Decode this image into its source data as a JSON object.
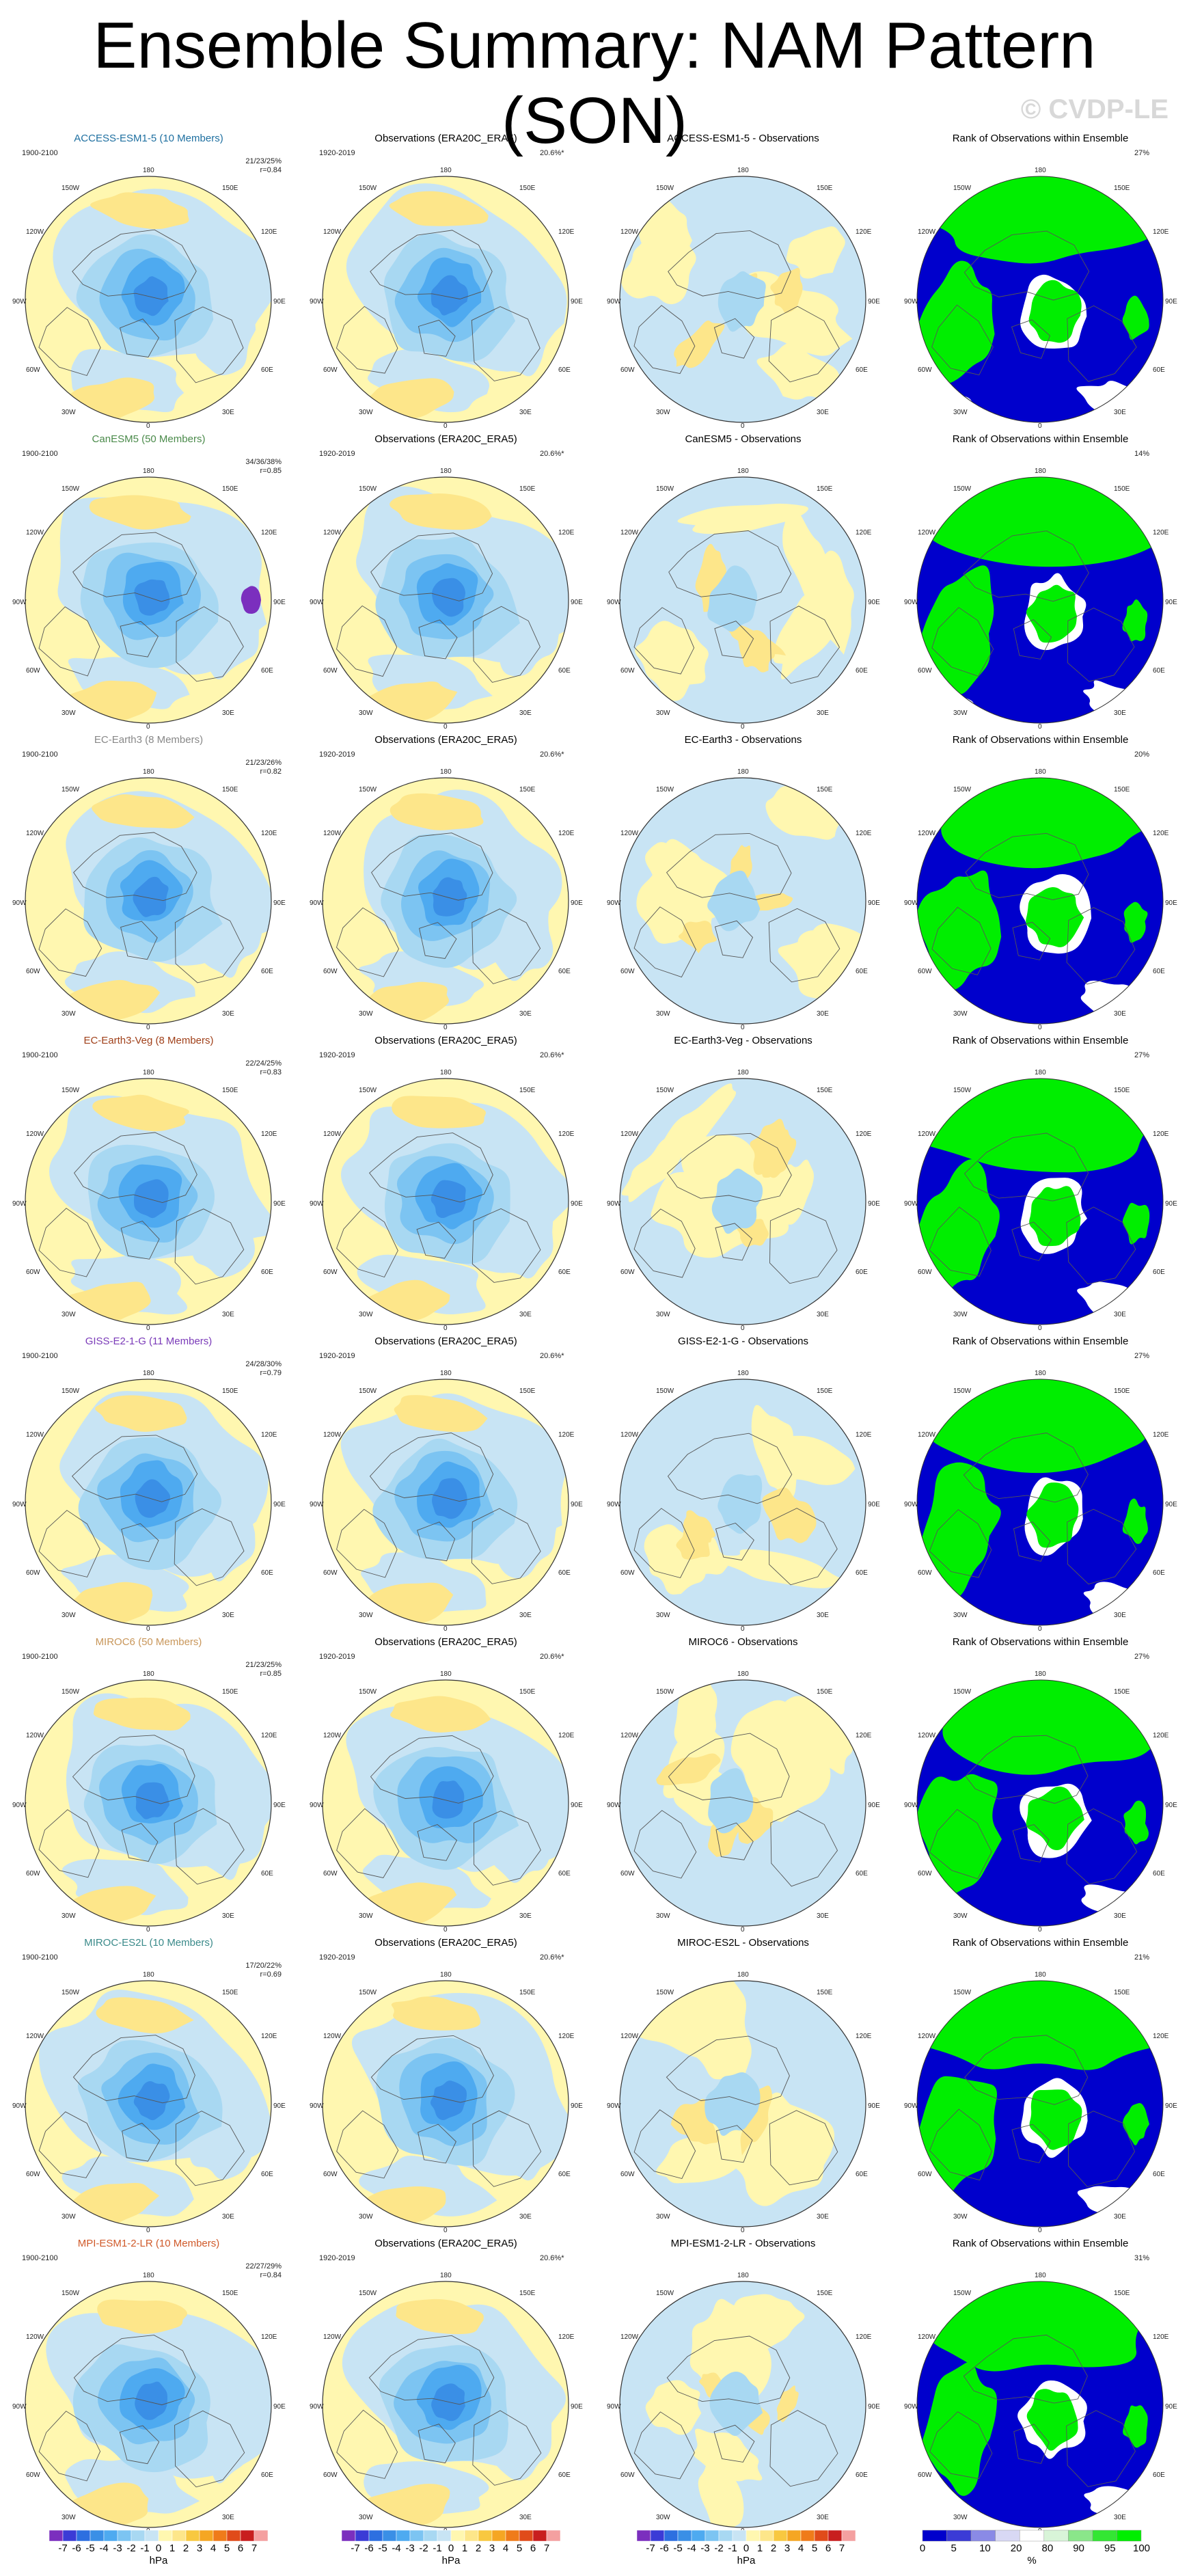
{
  "title": "Ensemble Summary: NAM Pattern (SON)",
  "watermark": "© CVDP-LE",
  "obs_title": "Observations (ERA20C_ERA5)",
  "rank_title": "Rank of Observations within Ensemble",
  "model_period": "1900-2100",
  "obs_period": "1920-2019",
  "obs_variance": "20.6%*",
  "lon_labels": {
    "top": "180",
    "tl": "150W",
    "tr": "150E",
    "l1": "120W",
    "r1": "120E",
    "l2": "90W",
    "r2": "90E",
    "l3": "60W",
    "r3": "60E",
    "bl": "30W",
    "br": "30E",
    "bottom": "0"
  },
  "rows": [
    {
      "model": "ACCESS-ESM1-5 (10 Members)",
      "model_color": "#1e6fa0",
      "diff_title": "ACCESS-ESM1-5 - Observations",
      "stats_a": "21/23/25%",
      "stats_b": "r=0.84",
      "rank_pct": "27%"
    },
    {
      "model": "CanESM5 (50 Members)",
      "model_color": "#4a8a4a",
      "diff_title": "CanESM5 - Observations",
      "stats_a": "34/36/38%",
      "stats_b": "r=0.85",
      "rank_pct": "14%"
    },
    {
      "model": "EC-Earth3 (8 Members)",
      "model_color": "#888888",
      "diff_title": "EC-Earth3 - Observations",
      "stats_a": "21/23/26%",
      "stats_b": "r=0.82",
      "rank_pct": "20%"
    },
    {
      "model": "EC-Earth3-Veg (8 Members)",
      "model_color": "#a0401a",
      "diff_title": "EC-Earth3-Veg - Observations",
      "stats_a": "22/24/25%",
      "stats_b": "r=0.83",
      "rank_pct": "27%"
    },
    {
      "model": "GISS-E2-1-G (11 Members)",
      "model_color": "#7a3ab8",
      "diff_title": "GISS-E2-1-G - Observations",
      "stats_a": "24/28/30%",
      "stats_b": "r=0.79",
      "rank_pct": "27%"
    },
    {
      "model": "MIROC6 (50 Members)",
      "model_color": "#c8965a",
      "diff_title": "MIROC6 - Observations",
      "stats_a": "21/23/25%",
      "stats_b": "r=0.85",
      "rank_pct": "27%"
    },
    {
      "model": "MIROC-ES2L (10 Members)",
      "model_color": "#3a8a8a",
      "diff_title": "MIROC-ES2L - Observations",
      "stats_a": "17/20/22%",
      "stats_b": "r=0.69",
      "rank_pct": "21%"
    },
    {
      "model": "MPI-ESM1-2-LR (10 Members)",
      "model_color": "#d05a2a",
      "diff_title": "MPI-ESM1-2-LR - Observations",
      "stats_a": "22/27/29%",
      "stats_b": "r=0.84",
      "rank_pct": "31%"
    }
  ],
  "colorbar_hpa": {
    "unit": "hPa",
    "ticks": [
      "-7",
      "-6",
      "-5",
      "-4",
      "-3",
      "-2",
      "-1",
      "0",
      "1",
      "2",
      "3",
      "4",
      "5",
      "6",
      "7"
    ],
    "colors": [
      "#7b2fbe",
      "#3b3bd6",
      "#2d6fe0",
      "#3a8fe6",
      "#4eaaf0",
      "#7cc4f2",
      "#a8d8f2",
      "#c8e4f4",
      "#fff7b0",
      "#fde68a",
      "#f8c840",
      "#f5a623",
      "#ef7b1a",
      "#e04b1a",
      "#c81e1e",
      "#f4a0a0"
    ]
  },
  "colorbar_pct": {
    "unit": "%",
    "ticks": [
      "0",
      "5",
      "10",
      "20",
      "80",
      "90",
      "95",
      "100"
    ],
    "colors": [
      "#0000cc",
      "#3b3bd6",
      "#8a8ae6",
      "#d8d8f4",
      "#ffffff",
      "#d8f4d8",
      "#8ae68a",
      "#33e633",
      "#00ee00"
    ]
  }
}
